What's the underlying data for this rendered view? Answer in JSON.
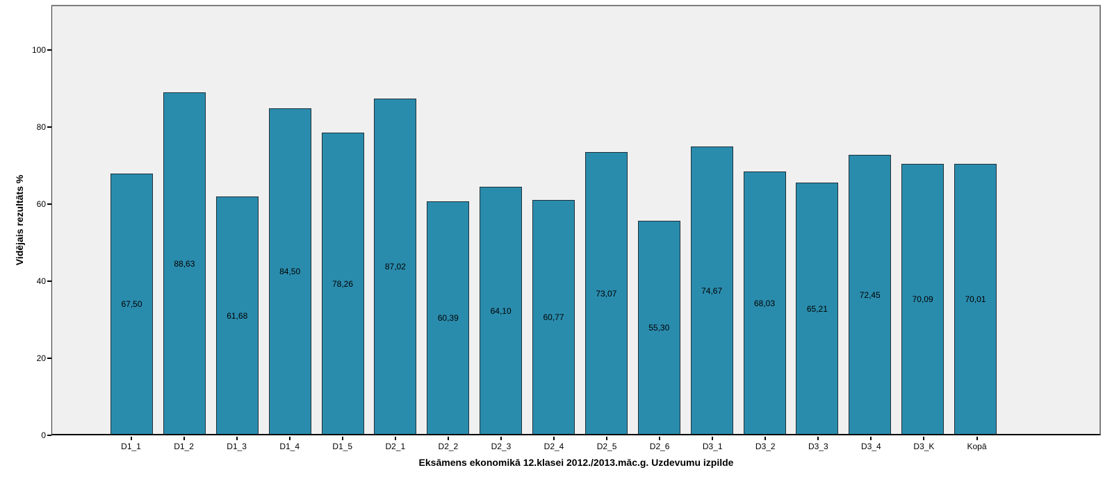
{
  "chart_data": {
    "type": "bar",
    "title": "",
    "xlabel": "Eksāmens ekonomikā 12.klasei 2012./2013.māc.g. Uzdevumu izpilde",
    "ylabel": "Vidējais rezultāts %",
    "categories": [
      "D1_1",
      "D1_2",
      "D1_3",
      "D1_4",
      "D1_5",
      "D2_1",
      "D2_2",
      "D2_3",
      "D2_4",
      "D2_5",
      "D2_6",
      "D3_1",
      "D3_2",
      "D3_3",
      "D3_4",
      "D3_K",
      "Kopā"
    ],
    "values": [
      67.5,
      88.63,
      61.68,
      84.5,
      78.26,
      87.02,
      60.39,
      64.1,
      60.77,
      73.07,
      55.3,
      74.67,
      68.03,
      65.21,
      72.45,
      70.09,
      70.01
    ],
    "value_labels": [
      "67,50",
      "88,63",
      "61,68",
      "84,50",
      "78,26",
      "87,02",
      "60,39",
      "64,10",
      "60,77",
      "73,07",
      "55,30",
      "74,67",
      "68,03",
      "65,21",
      "72,45",
      "70,09",
      "70,01"
    ],
    "yticks": [
      0,
      20,
      40,
      60,
      80,
      100
    ],
    "ylim": [
      0,
      111.7
    ],
    "grid": false,
    "legend": "none",
    "bar_color": "#2A8CAD",
    "bar_border_color": "#1E3038",
    "plot_bg_color": "#F0F0F0",
    "axis_color": "#000000",
    "frame_color": "#7D7D7D"
  }
}
